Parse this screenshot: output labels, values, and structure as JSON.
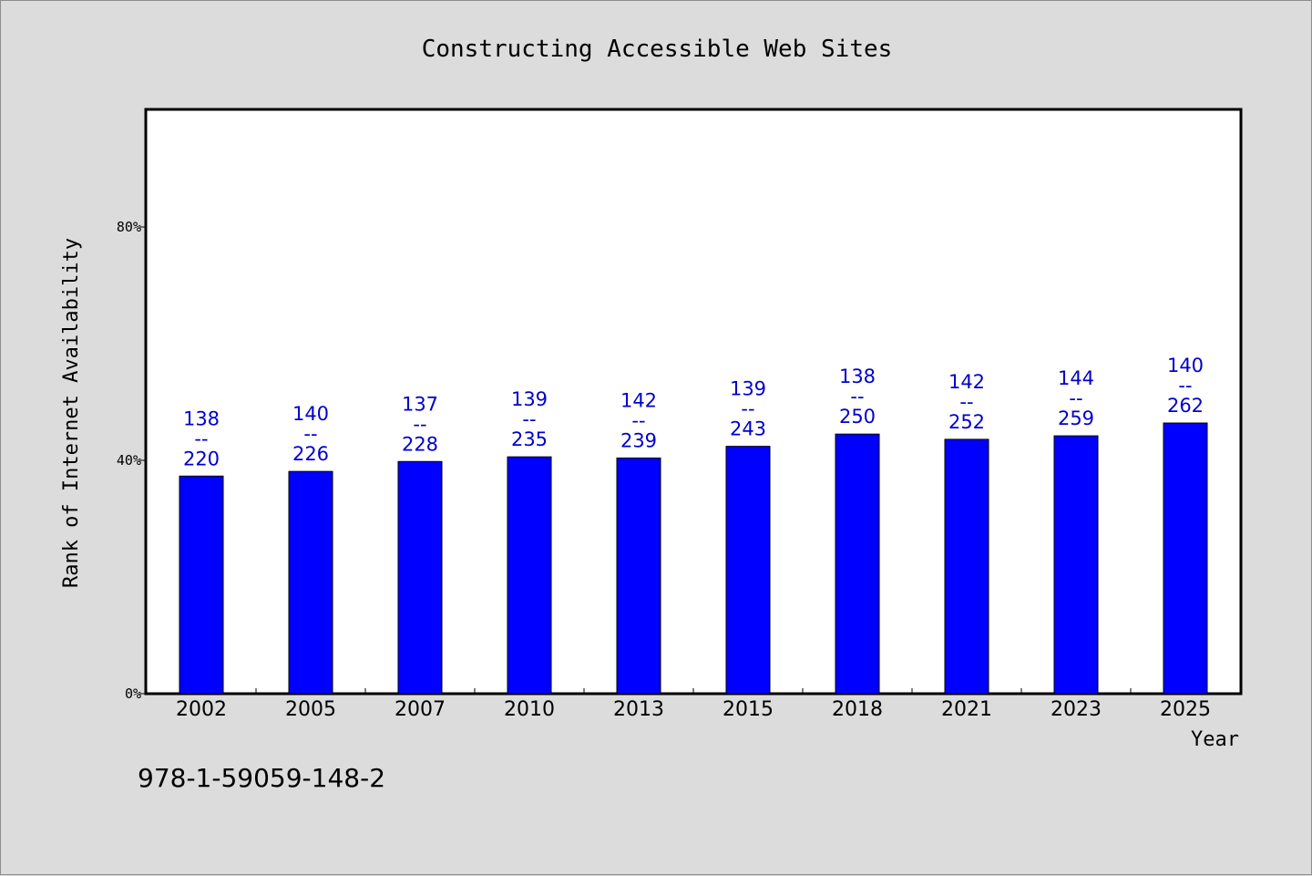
{
  "chart_data": {
    "type": "bar",
    "title": "Constructing Accessible Web Sites",
    "xlabel": "Year",
    "ylabel": "Rank of Internet Availability",
    "ylim": [
      0,
      1
    ],
    "yticks": [
      {
        "value": 0,
        "label": "0%"
      },
      {
        "value": 0.4,
        "label": "40%"
      },
      {
        "value": 0.8,
        "label": "80%"
      }
    ],
    "categories": [
      "2002",
      "2005",
      "2007",
      "2010",
      "2013",
      "2015",
      "2018",
      "2021",
      "2023",
      "2025"
    ],
    "values": [
      0.373,
      0.381,
      0.398,
      0.406,
      0.404,
      0.424,
      0.445,
      0.436,
      0.442,
      0.464
    ],
    "data_labels": [
      {
        "top": "138",
        "sep": "--",
        "bottom": "220"
      },
      {
        "top": "140",
        "sep": "--",
        "bottom": "226"
      },
      {
        "top": "137",
        "sep": "--",
        "bottom": "228"
      },
      {
        "top": "139",
        "sep": "--",
        "bottom": "235"
      },
      {
        "top": "142",
        "sep": "--",
        "bottom": "239"
      },
      {
        "top": "139",
        "sep": "--",
        "bottom": "243"
      },
      {
        "top": "138",
        "sep": "--",
        "bottom": "250"
      },
      {
        "top": "142",
        "sep": "--",
        "bottom": "252"
      },
      {
        "top": "144",
        "sep": "--",
        "bottom": "259"
      },
      {
        "top": "140",
        "sep": "--",
        "bottom": "262"
      }
    ],
    "bar_color": "#0000ff",
    "label_color": "#0000cc",
    "grid": false,
    "legend": "none"
  },
  "footer": {
    "isbn": "978-1-59059-148-2"
  }
}
